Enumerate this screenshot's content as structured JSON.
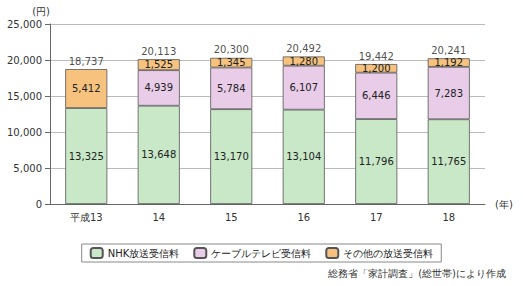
{
  "chart_data": {
    "type": "bar",
    "stacked": true,
    "data_labels": true,
    "grid": true,
    "legend": "bottom",
    "y_label": "(円)",
    "x_label": "(年)",
    "note": "総務省「家計調査」(総世帯)により作成",
    "categories": [
      "平成13",
      "14",
      "15",
      "16",
      "17",
      "18"
    ],
    "ylim": [
      0,
      25000
    ],
    "yticks": [
      0,
      {
        "value": 5000,
        "label": "5,000"
      },
      {
        "value": 10000,
        "label": "10,000"
      },
      {
        "value": 15000,
        "label": "15,000"
      },
      {
        "value": 20000,
        "label": "20,000"
      },
      {
        "value": 25000,
        "label": "25,000"
      }
    ],
    "series": [
      {
        "name": "NHK放送受信料",
        "color": "#c8e8c8",
        "values": [
          13325,
          13648,
          13170,
          13104,
          11796,
          11765
        ],
        "value_labels": [
          "13,325",
          "13,648",
          "13,170",
          "13,104",
          "11,796",
          "11,765"
        ]
      },
      {
        "name": "ケーブルテレビ受信料",
        "color": "#e8cce8",
        "values": [
          null,
          4939,
          5784,
          6107,
          6446,
          7283
        ],
        "value_labels": [
          null,
          "4,939",
          "5,784",
          "6,107",
          "6,446",
          "7,283"
        ]
      },
      {
        "name": "その他の放送受信料",
        "color": "#f6c27e",
        "values": [
          5412,
          1525,
          1345,
          1280,
          1200,
          1192
        ],
        "value_labels": [
          "5,412",
          "1,525",
          "1,345",
          "1,280",
          "1,200",
          "1,192"
        ]
      }
    ],
    "totals": [
      18737,
      20113,
      20300,
      20492,
      19442,
      20241
    ],
    "total_labels": [
      "18,737",
      "20,113",
      "20,300",
      "20,492",
      "19,442",
      "20,241"
    ]
  }
}
